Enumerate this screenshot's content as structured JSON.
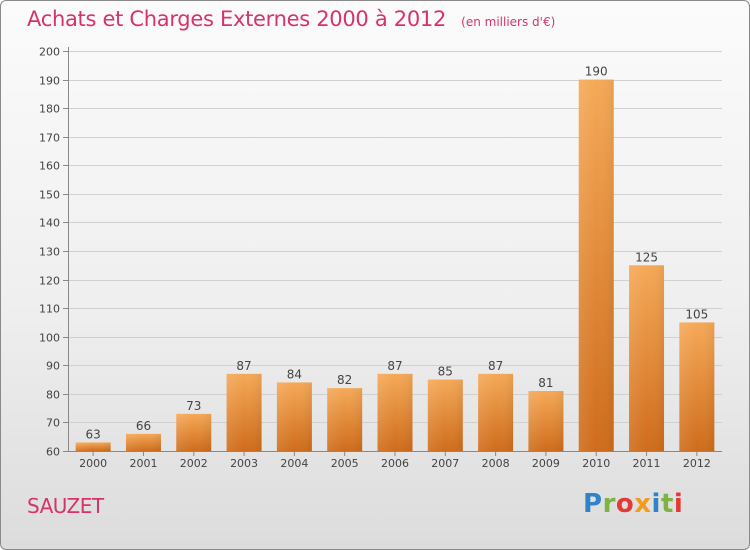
{
  "chart_data": {
    "type": "bar",
    "title": "Achats et Charges Externes 2000 à 2012",
    "unit_label": "(en milliers d'€)",
    "categories": [
      "2000",
      "2001",
      "2002",
      "2003",
      "2004",
      "2005",
      "2006",
      "2007",
      "2008",
      "2009",
      "2010",
      "2011",
      "2012"
    ],
    "values": [
      63,
      66,
      73,
      87,
      84,
      82,
      87,
      85,
      87,
      81,
      190,
      125,
      105
    ],
    "ylim": [
      60,
      200
    ],
    "yticks": [
      60,
      70,
      80,
      90,
      100,
      110,
      120,
      130,
      140,
      150,
      160,
      170,
      180,
      190,
      200
    ],
    "grid": true,
    "xlabel": "",
    "ylabel": "",
    "bar_color": "#f0903a",
    "bar_color_light": "#f5a957",
    "bar_color_dark": "#cf6c1b"
  },
  "footer": {
    "commune": "SAUZET",
    "logo_text": "Proxiti",
    "logo_colors": [
      "#2f83c6",
      "#7cb342",
      "#e53935",
      "#f59b1b",
      "#2f83c6",
      "#7cb342",
      "#e53935"
    ]
  },
  "colors": {
    "accent": "#d6336c"
  }
}
